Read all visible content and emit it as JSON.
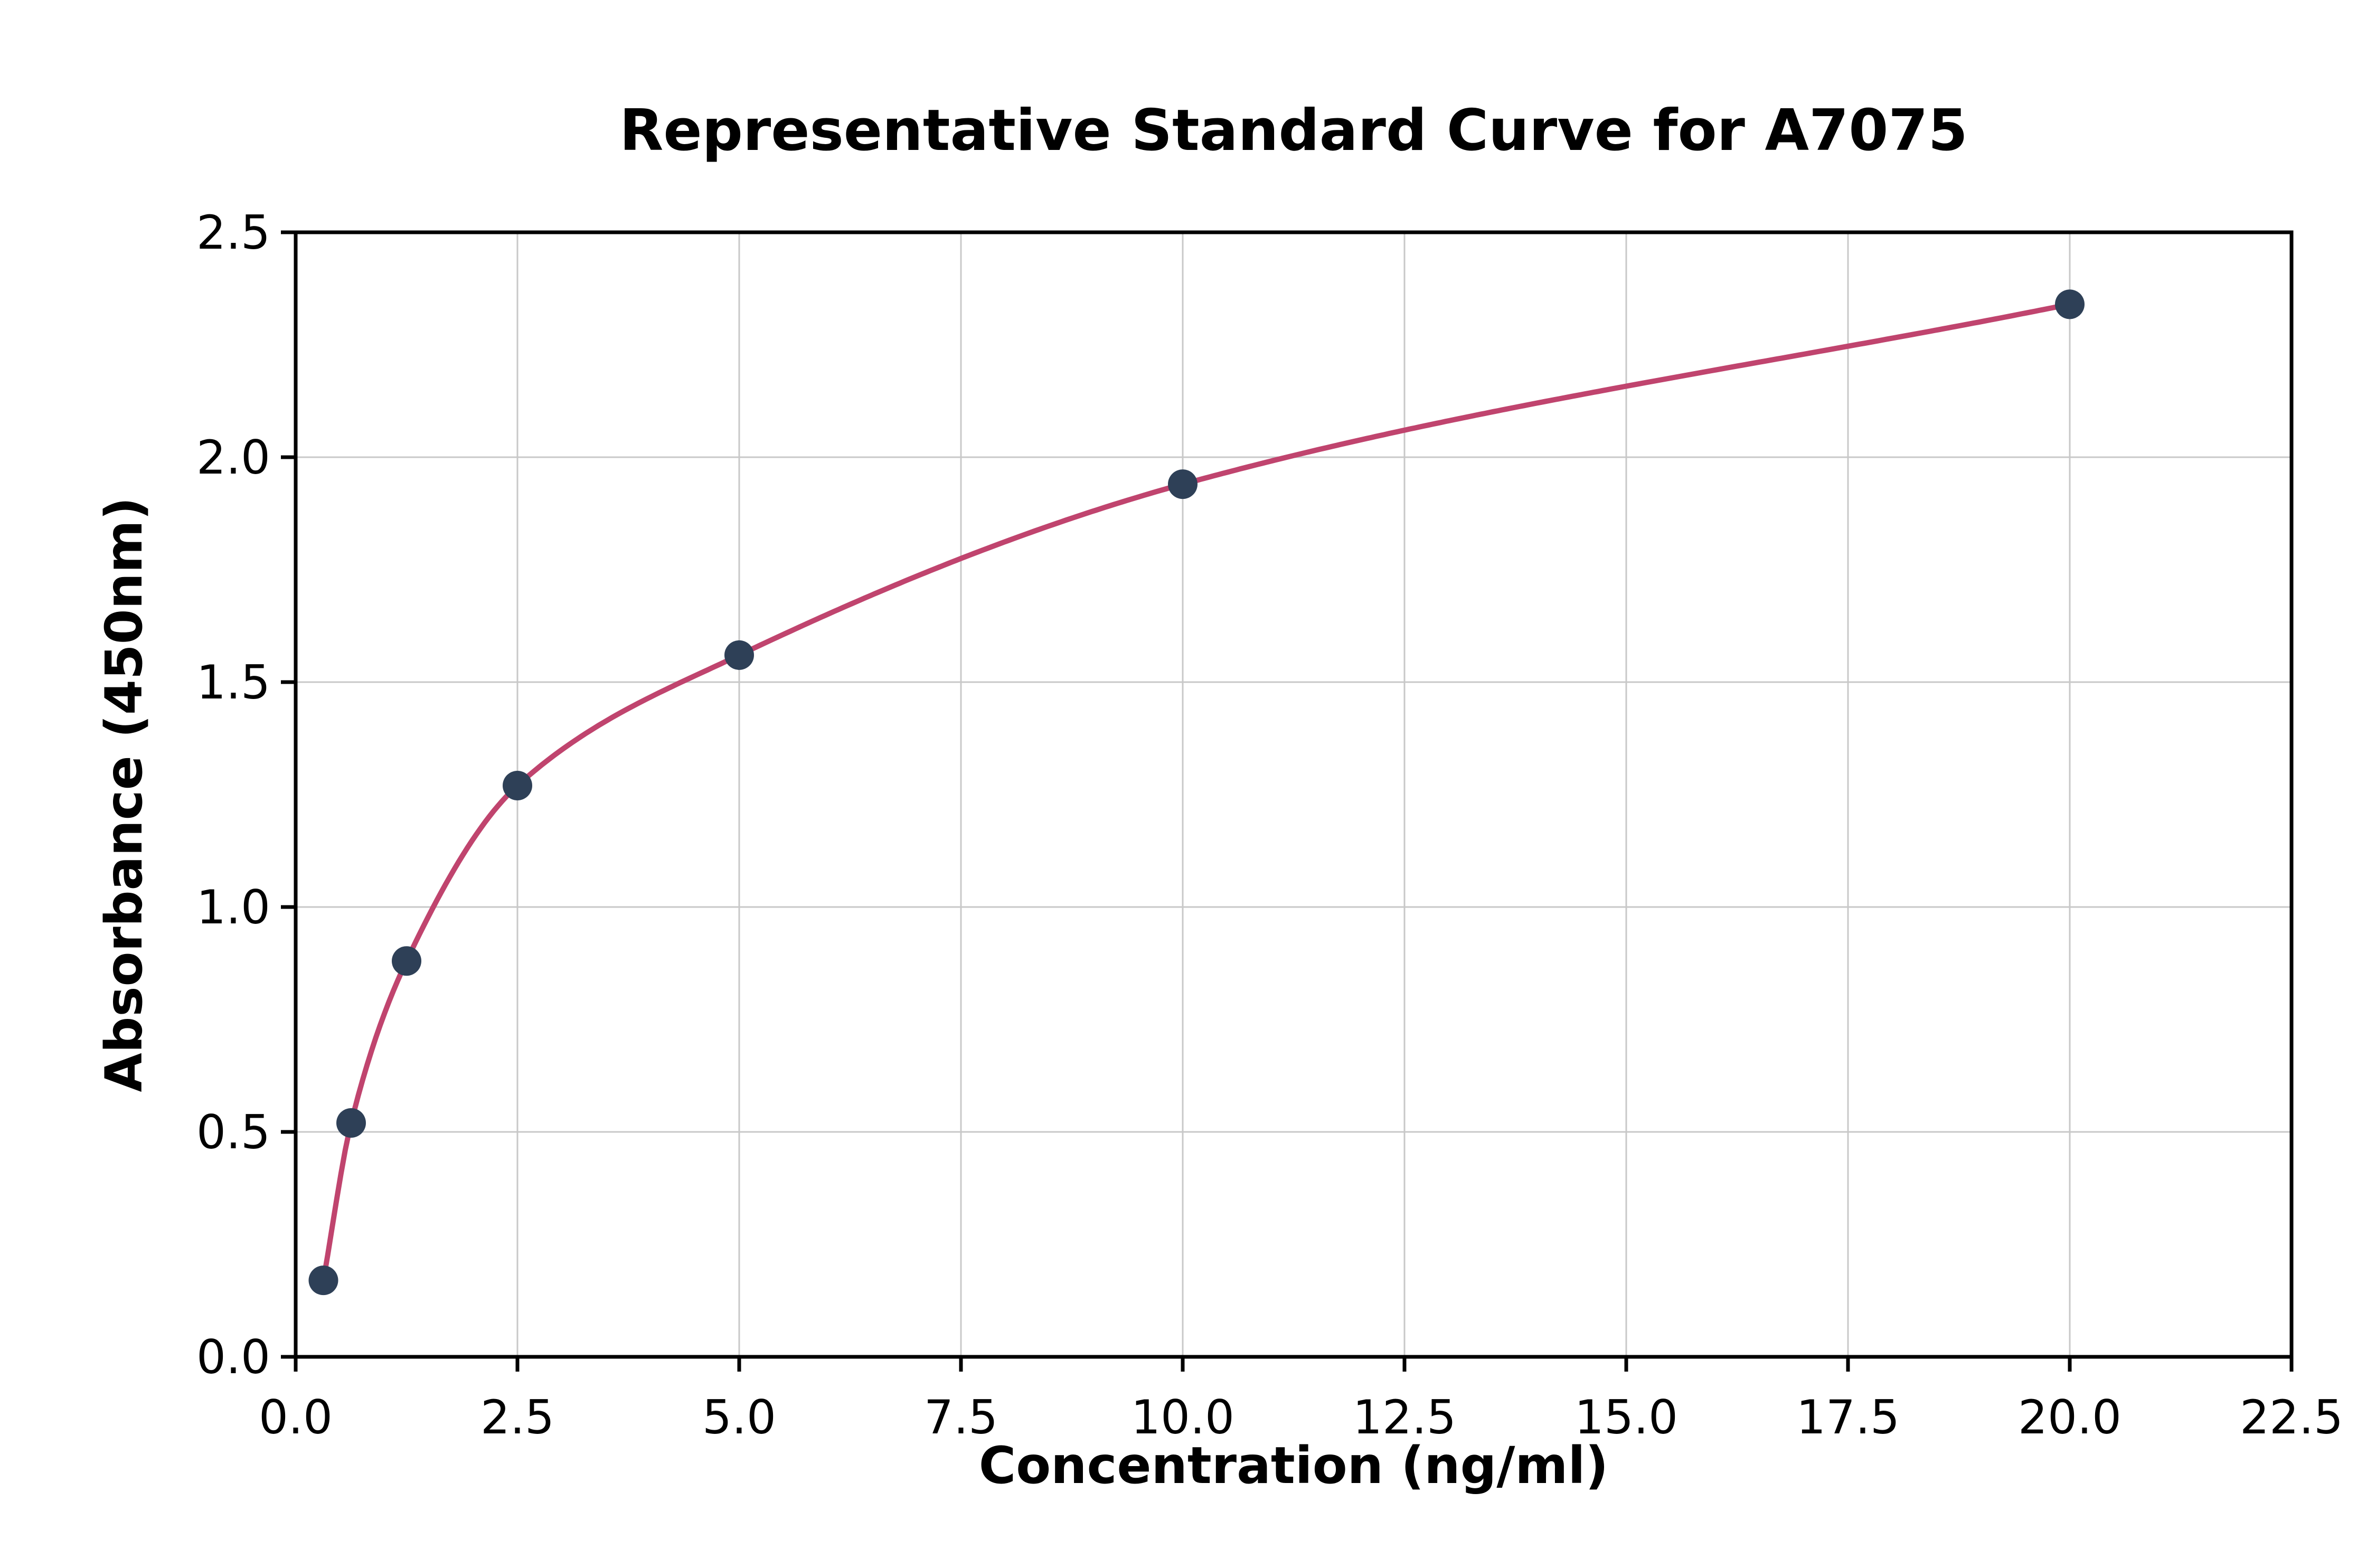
{
  "chart_data": {
    "type": "scatter",
    "title": "Representative Standard Curve for A7075",
    "xlabel": "Concentration (ng/ml)",
    "ylabel": "Absorbance (450nm)",
    "xlim": [
      0,
      22.5
    ],
    "ylim": [
      0,
      2.5
    ],
    "x_ticks": [
      0.0,
      2.5,
      5.0,
      7.5,
      10.0,
      12.5,
      15.0,
      17.5,
      20.0,
      22.5
    ],
    "x_tick_labels": [
      "0.0",
      "2.5",
      "5.0",
      "7.5",
      "10.0",
      "12.5",
      "15.0",
      "17.5",
      "20.0",
      "22.5"
    ],
    "y_ticks": [
      0.0,
      0.5,
      1.0,
      1.5,
      2.0,
      2.5
    ],
    "y_tick_labels": [
      "0.0",
      "0.5",
      "1.0",
      "1.5",
      "2.0",
      "2.5"
    ],
    "grid": true,
    "legend": "none",
    "points": [
      {
        "x": 0.3125,
        "y": 0.17
      },
      {
        "x": 0.625,
        "y": 0.52
      },
      {
        "x": 1.25,
        "y": 0.88
      },
      {
        "x": 2.5,
        "y": 1.27
      },
      {
        "x": 5.0,
        "y": 1.56
      },
      {
        "x": 10.0,
        "y": 1.94
      },
      {
        "x": 20.0,
        "y": 2.34
      }
    ],
    "series": [
      {
        "name": "standards",
        "style": "markers",
        "color": "#2e4057"
      },
      {
        "name": "fitted curve",
        "style": "line",
        "color": "#c0446e"
      }
    ],
    "point_color": "#2e4057",
    "curve_color": "#c0446e",
    "grid_color": "#c8c8c8",
    "frame_color": "#000000",
    "text_color": "#000000"
  }
}
